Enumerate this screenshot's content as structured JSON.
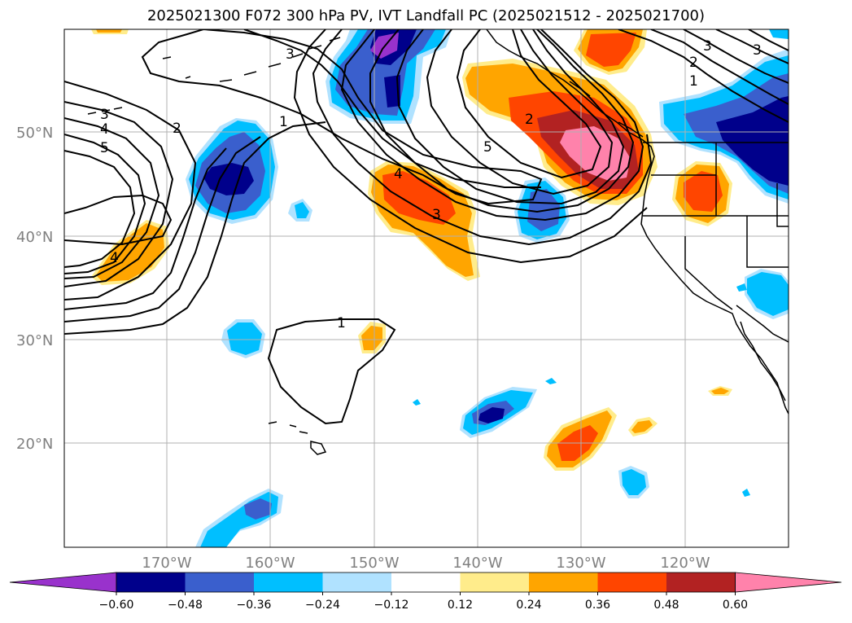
{
  "title": "2025021300 F072 300 hPa PV, IVT Landfall PC (2025021512 - 2025021700)",
  "lat_labels": [
    "50°N",
    "40°N",
    "30°N",
    "20°N"
  ],
  "lon_labels": [
    "170°W",
    "160°W",
    "150°W",
    "140°W",
    "130°W",
    "120°W"
  ],
  "contour_labels": [
    "3",
    "4",
    "5",
    "2",
    "1",
    "3",
    "2",
    "5",
    "4",
    "3",
    "1",
    "4",
    "3",
    "2",
    "1",
    "3"
  ],
  "colorbar": {
    "colors": [
      "#9932cc",
      "#00008b",
      "#3a5fcd",
      "#00bfff",
      "#b0e2ff",
      "#ffffff",
      "#ffec8b",
      "#ffa500",
      "#ff4500",
      "#b22222",
      "#ff82ab"
    ],
    "ticks": [
      "−0.60",
      "−0.48",
      "−0.36",
      "−0.24",
      "−0.12",
      "0.12",
      "0.24",
      "0.36",
      "0.48",
      "0.60"
    ]
  }
}
